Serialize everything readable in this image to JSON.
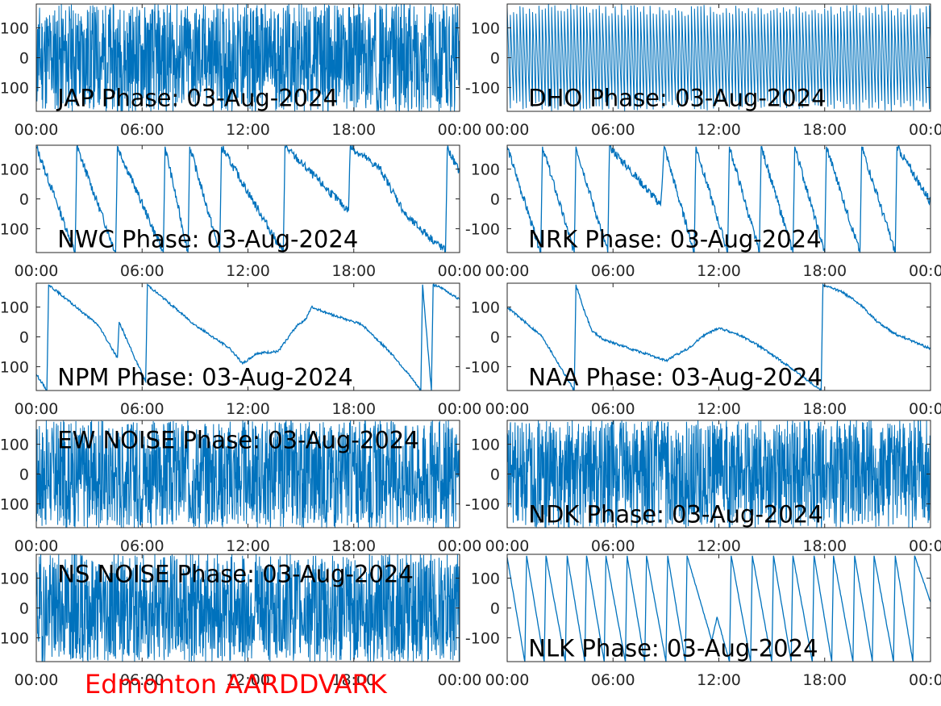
{
  "figure": {
    "site_label": "Edmonton AARDDVARK",
    "site_color": "#ff0000",
    "line_color": "#0072bd"
  },
  "chart_data": [
    {
      "type": "line",
      "panel_title": "JAP Phase: 03-Aug-2024",
      "x_ticks": [
        "00:00",
        "06:00",
        "12:00",
        "18:00",
        "00:00"
      ],
      "y_ticks": [
        "100",
        "0",
        "-100"
      ],
      "ylim": [
        -180,
        180
      ],
      "x_range_hours": [
        0,
        24
      ],
      "pattern": "noise",
      "seed": 11
    },
    {
      "type": "line",
      "panel_title": "DHO Phase: 03-Aug-2024",
      "x_ticks": [
        "00:00",
        "06:00",
        "12:00",
        "18:00",
        "00:00"
      ],
      "y_ticks": [
        "100",
        "0",
        "-100"
      ],
      "ylim": [
        -180,
        180
      ],
      "x_range_hours": [
        0,
        24
      ],
      "pattern": "dense_ramp",
      "seed": 12
    },
    {
      "type": "line",
      "panel_title": "NWC Phase: 03-Aug-2024",
      "x_ticks": [
        "00:00",
        "06:00",
        "12:00",
        "18:00",
        "00:00"
      ],
      "y_ticks": [
        "100",
        "0",
        "-100"
      ],
      "ylim": [
        -180,
        180
      ],
      "x_range_hours": [
        0,
        24
      ],
      "pattern": "ramp",
      "noise": 14,
      "seed": 13,
      "series": [
        {
          "values": [
            [
              0.0,
              175
            ],
            [
              2.2,
              -180
            ],
            [
              2.3,
              175
            ],
            [
              4.5,
              -180
            ],
            [
              4.6,
              175
            ],
            [
              7.2,
              -180
            ],
            [
              7.3,
              175
            ],
            [
              8.6,
              -180
            ],
            [
              8.7,
              175
            ],
            [
              10.4,
              -180
            ],
            [
              10.5,
              175
            ],
            [
              14.0,
              -180
            ],
            [
              14.1,
              175
            ],
            [
              17.7,
              -40
            ],
            [
              17.8,
              175
            ],
            [
              19.5,
              100
            ],
            [
              21.0,
              -60
            ],
            [
              23.2,
              -175
            ],
            [
              23.3,
              170
            ],
            [
              24.0,
              90
            ]
          ]
        }
      ]
    },
    {
      "type": "line",
      "panel_title": "NRK Phase: 03-Aug-2024",
      "x_ticks": [
        "00:00",
        "06:00",
        "12:00",
        "18:00",
        "00:00"
      ],
      "y_ticks": [
        "100",
        "0",
        "-100"
      ],
      "ylim": [
        -180,
        180
      ],
      "x_range_hours": [
        0,
        24
      ],
      "pattern": "ramp",
      "noise": 14,
      "seed": 14,
      "series": [
        {
          "values": [
            [
              0.0,
              175
            ],
            [
              1.9,
              -180
            ],
            [
              2.0,
              175
            ],
            [
              3.8,
              -180
            ],
            [
              3.9,
              175
            ],
            [
              5.7,
              -180
            ],
            [
              5.8,
              175
            ],
            [
              8.7,
              -20
            ],
            [
              8.9,
              175
            ],
            [
              10.6,
              -180
            ],
            [
              10.7,
              175
            ],
            [
              12.5,
              -180
            ],
            [
              12.6,
              175
            ],
            [
              14.3,
              -180
            ],
            [
              14.4,
              175
            ],
            [
              16.2,
              -180
            ],
            [
              16.3,
              175
            ],
            [
              18.0,
              -180
            ],
            [
              18.1,
              175
            ],
            [
              20.0,
              -180
            ],
            [
              20.1,
              175
            ],
            [
              22.0,
              -180
            ],
            [
              22.1,
              175
            ],
            [
              24.0,
              -10
            ]
          ]
        }
      ]
    },
    {
      "type": "line",
      "panel_title": "NPM Phase: 03-Aug-2024",
      "x_ticks": [
        "00:00",
        "06:00",
        "12:00",
        "18:00",
        "00:00"
      ],
      "y_ticks": [
        "100",
        "0",
        "-100"
      ],
      "ylim": [
        -180,
        180
      ],
      "x_range_hours": [
        0,
        24
      ],
      "pattern": "ramp",
      "noise": 4,
      "seed": 15,
      "series": [
        {
          "values": [
            [
              0.0,
              -125
            ],
            [
              0.6,
              -180
            ],
            [
              0.7,
              175
            ],
            [
              3.5,
              40
            ],
            [
              4.6,
              -70
            ],
            [
              4.7,
              50
            ],
            [
              5.5,
              -60
            ],
            [
              6.2,
              -150
            ],
            [
              6.3,
              175
            ],
            [
              7.0,
              140
            ],
            [
              9.0,
              40
            ],
            [
              11.0,
              -40
            ],
            [
              11.7,
              -90
            ],
            [
              12.5,
              -55
            ],
            [
              13.7,
              -50
            ],
            [
              14.8,
              40
            ],
            [
              15.3,
              60
            ],
            [
              15.6,
              100
            ],
            [
              16.5,
              80
            ],
            [
              17.5,
              60
            ],
            [
              18.5,
              40
            ],
            [
              20.2,
              -60
            ],
            [
              21.3,
              -140
            ],
            [
              21.8,
              -180
            ],
            [
              21.9,
              175
            ],
            [
              22.4,
              -180
            ],
            [
              22.5,
              175
            ],
            [
              23.1,
              160
            ],
            [
              24.0,
              125
            ]
          ]
        }
      ]
    },
    {
      "type": "line",
      "panel_title": "NAA Phase: 03-Aug-2024",
      "x_ticks": [
        "00:00",
        "06:00",
        "12:00",
        "18:00",
        "00:00"
      ],
      "y_ticks": [
        "100",
        "0",
        "-100"
      ],
      "ylim": [
        -180,
        180
      ],
      "x_range_hours": [
        0,
        24
      ],
      "pattern": "ramp",
      "noise": 4,
      "seed": 16,
      "series": [
        {
          "values": [
            [
              0.0,
              100
            ],
            [
              2.0,
              0
            ],
            [
              3.8,
              -180
            ],
            [
              3.9,
              175
            ],
            [
              4.3,
              100
            ],
            [
              4.8,
              20
            ],
            [
              5.5,
              -10
            ],
            [
              7.0,
              -40
            ],
            [
              8.0,
              -60
            ],
            [
              9.0,
              -80
            ],
            [
              10.5,
              -30
            ],
            [
              11.0,
              0
            ],
            [
              12.0,
              30
            ],
            [
              13.0,
              10
            ],
            [
              14.0,
              -20
            ],
            [
              16.0,
              -100
            ],
            [
              17.8,
              -180
            ],
            [
              17.9,
              175
            ],
            [
              19.0,
              150
            ],
            [
              20.0,
              110
            ],
            [
              21.0,
              50
            ],
            [
              22.0,
              10
            ],
            [
              24.0,
              -40
            ]
          ]
        }
      ]
    },
    {
      "type": "line",
      "panel_title": "EW NOISE Phase: 03-Aug-2024",
      "x_ticks": [
        "00:00",
        "06:00",
        "12:00",
        "18:00",
        "00:00"
      ],
      "y_ticks": [
        "100",
        "0",
        "-100"
      ],
      "ylim": [
        -180,
        180
      ],
      "x_range_hours": [
        0,
        24
      ],
      "pattern": "noise",
      "seed": 17
    },
    {
      "type": "line",
      "panel_title": "NDK Phase: 03-Aug-2024",
      "x_ticks": [
        "00:00",
        "06:00",
        "12:00",
        "18:00",
        "00:00"
      ],
      "y_ticks": [
        "100",
        "0",
        "-100"
      ],
      "ylim": [
        -180,
        180
      ],
      "x_range_hours": [
        0,
        24
      ],
      "pattern": "noise",
      "seed": 18
    },
    {
      "type": "line",
      "panel_title": "NS NOISE Phase: 03-Aug-2024",
      "x_ticks": [
        "00:00",
        "06:00",
        "12:00",
        "18:00",
        "00:00"
      ],
      "y_ticks": [
        "100",
        "0",
        "-100"
      ],
      "ylim": [
        -180,
        180
      ],
      "x_range_hours": [
        0,
        24
      ],
      "pattern": "noise",
      "seed": 19
    },
    {
      "type": "line",
      "panel_title": "NLK Phase: 03-Aug-2024",
      "x_ticks": [
        "00:00",
        "06:00",
        "12:00",
        "18:00",
        "00:00"
      ],
      "y_ticks": [
        "100",
        "0",
        "-100"
      ],
      "ylim": [
        -180,
        180
      ],
      "x_range_hours": [
        0,
        24
      ],
      "pattern": "ramp",
      "noise": 2,
      "seed": 20,
      "series": [
        {
          "values": [
            [
              0.0,
              170
            ],
            [
              1.0,
              -180
            ],
            [
              1.1,
              175
            ],
            [
              2.1,
              -180
            ],
            [
              2.2,
              175
            ],
            [
              3.3,
              -180
            ],
            [
              3.4,
              175
            ],
            [
              4.4,
              -180
            ],
            [
              4.5,
              175
            ],
            [
              5.5,
              -180
            ],
            [
              5.6,
              175
            ],
            [
              6.7,
              -180
            ],
            [
              6.8,
              175
            ],
            [
              7.8,
              -180
            ],
            [
              7.9,
              175
            ],
            [
              9.0,
              -180
            ],
            [
              9.1,
              175
            ],
            [
              10.1,
              -180
            ],
            [
              10.2,
              175
            ],
            [
              11.6,
              -110
            ],
            [
              11.9,
              -30
            ],
            [
              12.6,
              -180
            ],
            [
              12.7,
              175
            ],
            [
              13.8,
              -180
            ],
            [
              13.9,
              175
            ],
            [
              15.0,
              -180
            ],
            [
              15.1,
              175
            ],
            [
              16.1,
              -180
            ],
            [
              16.2,
              175
            ],
            [
              17.3,
              -180
            ],
            [
              17.4,
              175
            ],
            [
              18.4,
              -180
            ],
            [
              18.5,
              175
            ],
            [
              19.6,
              -180
            ],
            [
              19.7,
              175
            ],
            [
              20.7,
              -180
            ],
            [
              20.8,
              175
            ],
            [
              21.9,
              -180
            ],
            [
              22.0,
              175
            ],
            [
              23.0,
              -180
            ],
            [
              23.1,
              175
            ],
            [
              24.0,
              20
            ]
          ]
        }
      ]
    }
  ]
}
